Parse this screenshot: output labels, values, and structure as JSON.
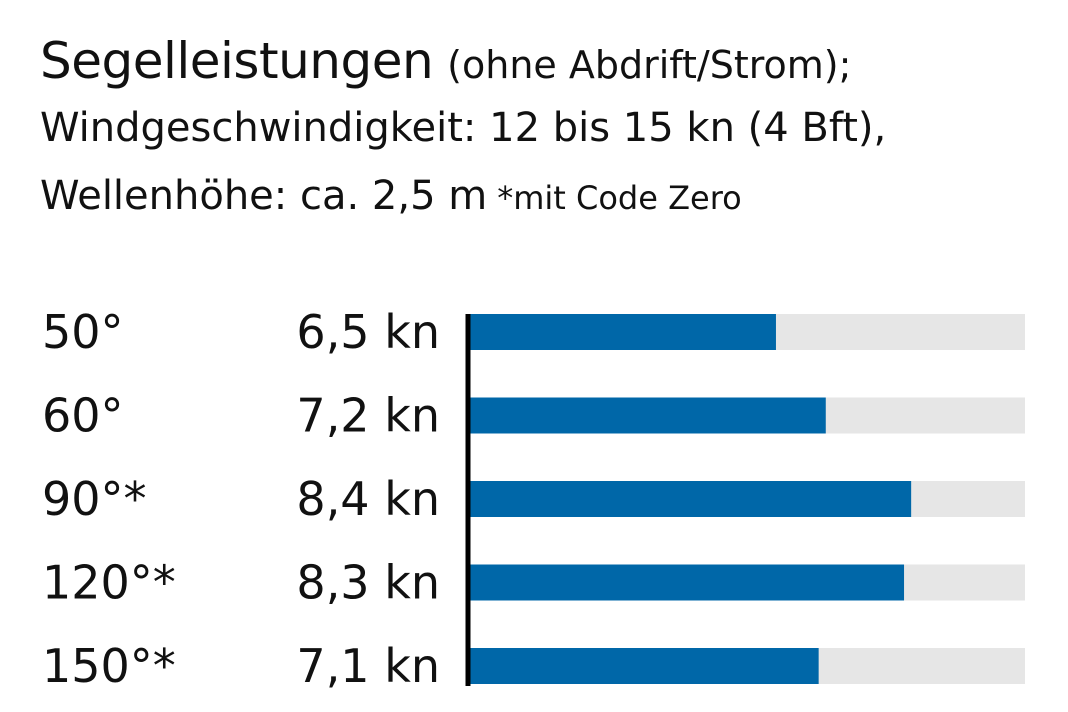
{
  "header": {
    "title": "Segelleistungen",
    "title_paren": "(ohne Abdrift/Strom);",
    "line2": "Windgeschwindigkeit: 12 bis 15 kn (4 Bft),",
    "line3": "Wellenhöhe: ca. 2,5 m",
    "note": "*mit Code Zero"
  },
  "colors": {
    "bar": "#0067a8",
    "track": "#e6e6e6",
    "axis": "#000000",
    "text": "#111111"
  },
  "chart_data": {
    "type": "bar",
    "orientation": "horizontal",
    "categories": [
      "50°",
      "60°",
      "90°*",
      "120°*",
      "150°*"
    ],
    "value_labels": [
      "6,5 kn",
      "7,2 kn",
      "8,4 kn",
      "8,3 kn",
      "7,1 kn"
    ],
    "values": [
      6.5,
      7.2,
      8.4,
      8.3,
      7.1
    ],
    "unit": "kn",
    "xlim": [
      2.2,
      10.0
    ],
    "grid": false,
    "legend": "none"
  }
}
